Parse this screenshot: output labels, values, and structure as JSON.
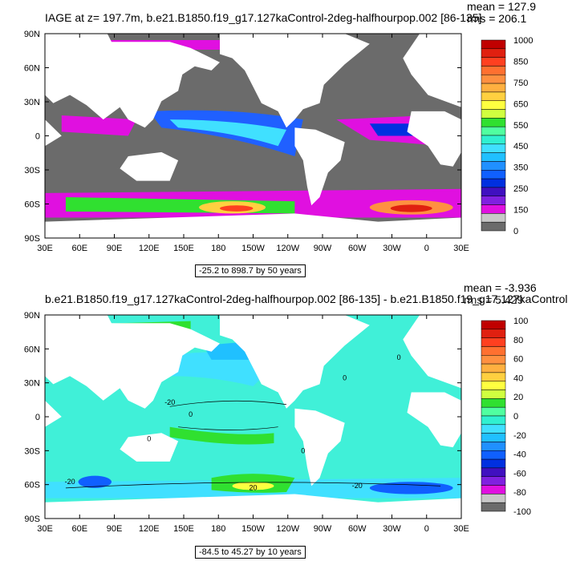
{
  "colors": {
    "ocean_missing": "#6b6b6b",
    "land": "#ffffff",
    "frame": "#000000"
  },
  "chart_data": [
    {
      "type": "heatmap",
      "title": "IAGE at z= 197.7m, b.e21.B1850.f19_g17.127kaControl-2deg-halfhourpop.002 [86-135]",
      "mean_label": "mean = 127.9",
      "rms_label": "rms = 206.1",
      "range_label": "-25.2 to 898.7 by 50 years",
      "lat_ticks": [
        "90N",
        "60N",
        "30N",
        "0",
        "30S",
        "60S",
        "90S"
      ],
      "lon_ticks": [
        "30E",
        "60E",
        "90E",
        "120E",
        "150E",
        "180",
        "150W",
        "120W",
        "90W",
        "60W",
        "30W",
        "0",
        "30E"
      ],
      "colorbar_labels": [
        "1000",
        "850",
        "750",
        "650",
        "550",
        "450",
        "350",
        "250",
        "150",
        "0"
      ],
      "colorbar_colors": [
        "#c00000",
        "#e02010",
        "#ff4020",
        "#ff7030",
        "#ff9040",
        "#ffb040",
        "#ffd040",
        "#ffff40",
        "#d0ff40",
        "#30e030",
        "#50ffa0",
        "#30f0d0",
        "#40e0ff",
        "#20c0ff",
        "#2090ff",
        "#1060ff",
        "#0030e0",
        "#4010c0",
        "#8020e0",
        "#e010e0",
        "#c8c8c8",
        "#6b6b6b"
      ],
      "value_range": [
        -25.2,
        898.7
      ],
      "ylim": [
        -90,
        90
      ],
      "xlim": [
        30,
        390
      ]
    },
    {
      "type": "heatmap",
      "title": "b.e21.B1850.f19_g17.127kaControl-2deg-halfhourpop.002 [86-135] - b.e21.B1850.f19_g17.127kaControl",
      "mean_label": "mean = -3.936",
      "rms_label": "rms = 5.429",
      "range_label": "-84.5 to 45.27 by 10 years",
      "lat_ticks": [
        "90N",
        "60N",
        "30N",
        "0",
        "30S",
        "60S",
        "90S"
      ],
      "lon_ticks": [
        "30E",
        "60E",
        "90E",
        "120E",
        "150E",
        "180",
        "150W",
        "120W",
        "90W",
        "60W",
        "30W",
        "0",
        "30E"
      ],
      "colorbar_labels": [
        "100",
        "80",
        "60",
        "40",
        "20",
        "0",
        "-20",
        "-40",
        "-60",
        "-80",
        "-100"
      ],
      "colorbar_colors": [
        "#c00000",
        "#e02010",
        "#ff4020",
        "#ff7030",
        "#ff9040",
        "#ffb040",
        "#ffd040",
        "#ffff40",
        "#d0ff40",
        "#30e030",
        "#50ffa0",
        "#30f0d0",
        "#40e0ff",
        "#20c0ff",
        "#2090ff",
        "#1060ff",
        "#0030e0",
        "#4010c0",
        "#8020e0",
        "#e010e0",
        "#c8c8c8",
        "#6b6b6b"
      ],
      "contour_labels": [
        "-20",
        "0",
        "0",
        "0",
        "0",
        "0",
        "-20",
        "20",
        "-20"
      ],
      "value_range": [
        -84.5,
        45.27
      ],
      "ylim": [
        -90,
        90
      ],
      "xlim": [
        30,
        390
      ]
    }
  ]
}
